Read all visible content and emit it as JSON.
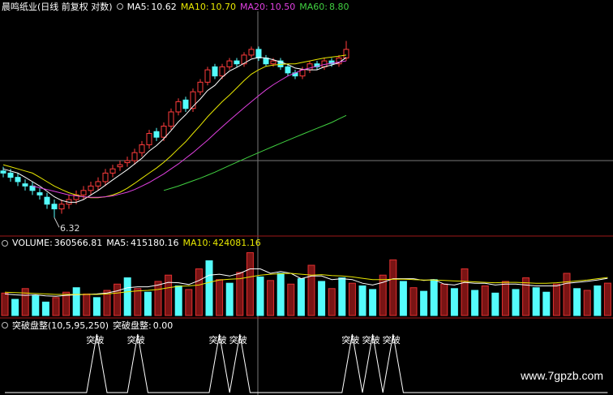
{
  "chart_data": [
    {
      "type": "candlestick",
      "title": "晨鸣纸业(日线 前复权 对数)",
      "log_scale": true,
      "ylim": [
        6,
        12.2
      ],
      "up_color": "#ff3c3c",
      "down_color": "#54fcfc",
      "low_label": 6.32,
      "open": [
        7.35,
        7.3,
        7.2,
        7.05,
        7.0,
        6.85,
        6.75,
        6.6,
        6.5,
        6.6,
        6.7,
        6.8,
        6.9,
        7.0,
        7.1,
        7.3,
        7.45,
        7.55,
        7.6,
        7.8,
        8.0,
        8.35,
        8.2,
        8.5,
        8.9,
        9.25,
        9.0,
        9.5,
        9.8,
        10.3,
        10.0,
        10.3,
        10.5,
        10.4,
        10.7,
        10.9,
        10.6,
        10.4,
        10.5,
        10.3,
        10.1,
        10.0,
        10.2,
        10.4,
        10.3,
        10.5,
        10.4,
        10.6
      ],
      "high": [
        7.45,
        7.4,
        7.3,
        7.15,
        7.1,
        6.95,
        6.85,
        6.7,
        6.7,
        6.8,
        6.9,
        7.0,
        7.1,
        7.2,
        7.4,
        7.5,
        7.6,
        7.7,
        7.9,
        8.1,
        8.4,
        8.45,
        8.6,
        9.0,
        9.3,
        9.35,
        9.6,
        9.9,
        10.3,
        10.4,
        10.4,
        10.6,
        10.6,
        10.8,
        11.0,
        11.0,
        10.7,
        10.6,
        10.6,
        10.4,
        10.2,
        10.3,
        10.5,
        10.5,
        10.6,
        10.6,
        10.7,
        11.2
      ],
      "low": [
        7.2,
        7.1,
        7.0,
        6.9,
        6.8,
        6.7,
        6.5,
        6.32,
        6.4,
        6.5,
        6.6,
        6.7,
        6.8,
        6.9,
        7.0,
        7.2,
        7.35,
        7.45,
        7.5,
        7.7,
        7.9,
        8.1,
        8.1,
        8.4,
        8.8,
        8.9,
        8.9,
        9.4,
        9.7,
        9.9,
        9.9,
        10.2,
        10.3,
        10.3,
        10.6,
        10.5,
        10.3,
        10.3,
        10.2,
        10.0,
        9.9,
        9.9,
        10.1,
        10.2,
        10.2,
        10.3,
        10.3,
        10.5
      ],
      "close": [
        7.3,
        7.2,
        7.1,
        7.0,
        6.9,
        6.8,
        6.6,
        6.5,
        6.6,
        6.7,
        6.8,
        6.9,
        7.0,
        7.1,
        7.3,
        7.4,
        7.5,
        7.6,
        7.8,
        8.0,
        8.3,
        8.2,
        8.5,
        8.9,
        9.2,
        9.0,
        9.5,
        9.8,
        10.2,
        10.0,
        10.3,
        10.5,
        10.4,
        10.7,
        10.9,
        10.6,
        10.4,
        10.5,
        10.3,
        10.1,
        10.0,
        10.2,
        10.4,
        10.3,
        10.5,
        10.4,
        10.6,
        10.9
      ],
      "series": [
        {
          "name": "MA5:",
          "value": 10.62,
          "color": "#ffffff",
          "values": [
            7.4,
            7.35,
            7.3,
            7.2,
            7.1,
            7.0,
            6.88,
            6.76,
            6.68,
            6.64,
            6.64,
            6.7,
            6.8,
            6.9,
            7.02,
            7.14,
            7.26,
            7.38,
            7.52,
            7.66,
            7.84,
            7.98,
            8.16,
            8.38,
            8.62,
            8.82,
            9.06,
            9.28,
            9.54,
            9.7,
            9.96,
            10.16,
            10.28,
            10.42,
            10.56,
            10.62,
            10.6,
            10.54,
            10.46,
            10.38,
            10.26,
            10.22,
            10.2,
            10.2,
            10.3,
            10.36,
            10.44,
            10.62
          ]
        },
        {
          "name": "MA10:",
          "value": 10.7,
          "value_label": "10.70",
          "color": "#e8e800",
          "values": [
            7.5,
            7.45,
            7.4,
            7.35,
            7.3,
            7.2,
            7.1,
            7.0,
            6.92,
            6.85,
            6.8,
            6.76,
            6.74,
            6.74,
            6.76,
            6.8,
            6.86,
            6.95,
            7.06,
            7.18,
            7.3,
            7.42,
            7.56,
            7.72,
            7.9,
            8.08,
            8.3,
            8.52,
            8.76,
            8.98,
            9.2,
            9.4,
            9.62,
            9.85,
            10.06,
            10.2,
            10.32,
            10.36,
            10.38,
            10.4,
            10.4,
            10.45,
            10.5,
            10.55,
            10.6,
            10.63,
            10.66,
            10.7
          ]
        },
        {
          "name": "MA20:",
          "value": 10.5,
          "value_label": "10.50",
          "color": "#e040e0",
          "values": [
            null,
            null,
            null,
            null,
            7.0,
            6.96,
            6.92,
            6.88,
            6.84,
            6.8,
            6.78,
            6.76,
            6.75,
            6.75,
            6.76,
            6.78,
            6.82,
            6.86,
            6.92,
            7.0,
            7.08,
            7.18,
            7.28,
            7.4,
            7.52,
            7.66,
            7.8,
            7.96,
            8.12,
            8.3,
            8.48,
            8.66,
            8.84,
            9.02,
            9.2,
            9.38,
            9.56,
            9.72,
            9.86,
            10.0,
            10.1,
            10.2,
            10.26,
            10.32,
            10.38,
            10.42,
            10.46,
            10.5
          ]
        },
        {
          "name": "MA60:",
          "value": 8.8,
          "value_label": "8.80",
          "color": "#40d040",
          "values": [
            null,
            null,
            null,
            null,
            null,
            null,
            null,
            null,
            null,
            null,
            null,
            null,
            null,
            null,
            null,
            null,
            null,
            null,
            null,
            null,
            null,
            null,
            6.9,
            6.95,
            7.0,
            7.06,
            7.12,
            7.18,
            7.25,
            7.32,
            7.4,
            7.48,
            7.56,
            7.64,
            7.72,
            7.8,
            7.88,
            7.96,
            8.04,
            8.12,
            8.2,
            8.28,
            8.36,
            8.44,
            8.52,
            8.6,
            8.7,
            8.8
          ]
        }
      ]
    },
    {
      "type": "volume",
      "title": "VOLUME:",
      "title_value": 360566.81,
      "ylim": [
        0,
        750000
      ],
      "up_color": "#e03030",
      "down_color": "#54fcfc",
      "values": [
        250000,
        180000,
        300000,
        220000,
        150000,
        200000,
        260000,
        310000,
        240000,
        200000,
        280000,
        350000,
        420000,
        300000,
        260000,
        380000,
        450000,
        330000,
        290000,
        520000,
        610000,
        400000,
        360000,
        480000,
        700000,
        430000,
        390000,
        470000,
        350000,
        410000,
        560000,
        380000,
        300000,
        420000,
        360000,
        330000,
        290000,
        450000,
        620000,
        380000,
        310000,
        270000,
        400000,
        350000,
        300000,
        520000,
        280000,
        330000,
        250000,
        380000,
        290000,
        420000,
        310000,
        260000,
        350000,
        470000,
        300000,
        280000,
        330000,
        360566.81
      ],
      "up": [
        true,
        false,
        true,
        false,
        false,
        true,
        true,
        false,
        true,
        false,
        true,
        true,
        false,
        true,
        false,
        true,
        true,
        false,
        true,
        true,
        false,
        true,
        false,
        true,
        true,
        false,
        true,
        false,
        true,
        false,
        true,
        false,
        true,
        false,
        true,
        false,
        false,
        true,
        true,
        false,
        true,
        false,
        false,
        true,
        false,
        true,
        false,
        true,
        false,
        true,
        false,
        true,
        false,
        false,
        true,
        true,
        false,
        true,
        false,
        true
      ],
      "series": [
        {
          "name": "MA5:",
          "value": 415180.16,
          "color": "#ffffff",
          "values": [
            240000,
            230000,
            225000,
            230000,
            220000,
            215000,
            225000,
            230000,
            235000,
            240000,
            250000,
            275000,
            310000,
            320000,
            320000,
            340000,
            370000,
            365000,
            345000,
            390000,
            450000,
            460000,
            440000,
            470000,
            520000,
            520000,
            470000,
            490000,
            470000,
            410000,
            440000,
            440000,
            400000,
            410000,
            400000,
            360000,
            340000,
            370000,
            410000,
            410000,
            410000,
            390000,
            400000,
            350000,
            340000,
            370000,
            360000,
            360000,
            340000,
            350000,
            350000,
            340000,
            330000,
            330000,
            330000,
            360000,
            370000,
            380000,
            395000,
            415180.16
          ]
        },
        {
          "name": "MA10:",
          "value": 424081.16,
          "color": "#e8e800",
          "values": [
            260000,
            255000,
            250000,
            245000,
            240000,
            235000,
            235000,
            235000,
            235000,
            235000,
            240000,
            250000,
            265000,
            275000,
            280000,
            290000,
            310000,
            325000,
            330000,
            340000,
            370000,
            395000,
            405000,
            410000,
            430000,
            450000,
            460000,
            465000,
            470000,
            460000,
            450000,
            455000,
            445000,
            440000,
            430000,
            415000,
            400000,
            400000,
            405000,
            405000,
            400000,
            395000,
            395000,
            390000,
            385000,
            380000,
            375000,
            370000,
            365000,
            370000,
            370000,
            365000,
            360000,
            360000,
            365000,
            375000,
            385000,
            395000,
            410000,
            424081.16
          ]
        }
      ]
    },
    {
      "type": "signal",
      "title": "突破盘整(10,5,95,250)",
      "ylim": [
        0,
        1
      ],
      "spike_label": "突破",
      "series": [
        {
          "name": "突破盘整:",
          "value": 0,
          "value_label": "0.00",
          "color": "#ffffff",
          "values": [
            0,
            0,
            0,
            0,
            0,
            0,
            0,
            0,
            0,
            1,
            0,
            0,
            0,
            1,
            0,
            0,
            0,
            0,
            0,
            0,
            0,
            1,
            0,
            1,
            0,
            0,
            0,
            0,
            0,
            0,
            0,
            0,
            0,
            0,
            1,
            0,
            1,
            0,
            1,
            0,
            0,
            0,
            0,
            0,
            0,
            0,
            0,
            0,
            0,
            0,
            0,
            0,
            0,
            0,
            0,
            0,
            0,
            0,
            0,
            0
          ]
        }
      ]
    }
  ],
  "watermark": "www.7gpzb.com"
}
